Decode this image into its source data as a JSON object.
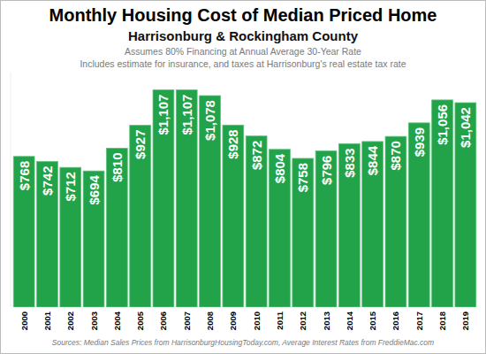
{
  "chart_data": {
    "type": "bar",
    "title": "Monthly Housing Cost of Median Priced Home",
    "subtitle": "Harrisonburg & Rockingham County",
    "annotations": [
      "Assumes 80% Financing at Annual Average 30-Year Rate",
      "Includes estimate for insurance, and taxes at Harrisonburg's real estate tax rate"
    ],
    "source": "Sources: Median Sales Prices from HarrisonburgHousingToday.com, Average Interest Rates from FreddieMac.com",
    "categories": [
      "2000",
      "2001",
      "2002",
      "2003",
      "2004",
      "2005",
      "2006",
      "2007",
      "2008",
      "2009",
      "2010",
      "2011",
      "2012",
      "2013",
      "2014",
      "2015",
      "2016",
      "2017",
      "2018",
      "2019"
    ],
    "values": [
      768,
      742,
      712,
      694,
      810,
      927,
      1107,
      1107,
      1078,
      928,
      872,
      804,
      758,
      796,
      833,
      844,
      870,
      939,
      1056,
      1042
    ],
    "value_labels": [
      "$768",
      "$742",
      "$712",
      "$694",
      "$810",
      "$927",
      "$1,107",
      "$1,107",
      "$1,078",
      "$928",
      "$872",
      "$804",
      "$758",
      "$796",
      "$833",
      "$844",
      "$870",
      "$939",
      "$1,056",
      "$1,042"
    ],
    "color": "#22a34a",
    "ylim": [
      0,
      1200
    ],
    "grid": false,
    "data_labels": true,
    "tick_labels": "x"
  }
}
